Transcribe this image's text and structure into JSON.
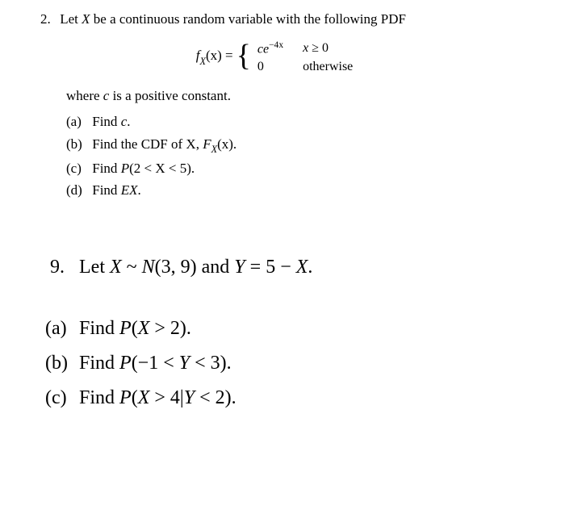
{
  "problem2": {
    "number": "2.",
    "intro_pre": "Let ",
    "intro_var": "X",
    "intro_post": " be a continuous random variable with the following PDF",
    "eq_lhs_f": "f",
    "eq_lhs_sub": "X",
    "eq_lhs_arg": "(x) = ",
    "case1_expr": "ce",
    "case1_exp": "−4x",
    "case1_cond_var": "x",
    "case1_cond_rest": " ≥ 0",
    "case2_expr": "0",
    "case2_cond": "otherwise",
    "where_pre": "where ",
    "where_var": "c",
    "where_post": " is a positive constant.",
    "parts": {
      "a": {
        "label": "(a)",
        "pre": "Find ",
        "var": "c",
        "post": "."
      },
      "b": {
        "label": "(b)",
        "pre": "Find the CDF of X, ",
        "fn_f": "F",
        "fn_sub": "X",
        "fn_arg": "(x)",
        "post": "."
      },
      "c": {
        "label": "(c)",
        "pre": "Find ",
        "expr_p": "P",
        "expr_body": "(2 < X < 5)",
        "post": "."
      },
      "d": {
        "label": "(d)",
        "pre": "Find ",
        "expr": "EX",
        "post": "."
      }
    }
  },
  "problem9": {
    "number": "9.",
    "text_pre": "Let ",
    "text_x": "X",
    "text_dist": " ~ ",
    "text_N": "N",
    "text_Nargs": "(3, 9) and ",
    "text_y": "Y",
    "text_eq": " = 5 − ",
    "text_x2": "X",
    "text_post": ".",
    "parts": {
      "a": {
        "label": "(a)",
        "pre": "Find ",
        "P": "P",
        "body_open": "(",
        "body_var": "X",
        "body_rest": " > 2)",
        "post": "."
      },
      "b": {
        "label": "(b)",
        "pre": "Find ",
        "P": "P",
        "body_open": "(−1 < ",
        "body_var": "Y",
        "body_rest": " < 3)",
        "post": "."
      },
      "c": {
        "label": "(c)",
        "pre": "Find ",
        "P": "P",
        "body_open": "(",
        "body_var1": "X",
        "body_mid": " > 4|",
        "body_var2": "Y",
        "body_rest": " < 2)",
        "post": "."
      }
    }
  }
}
